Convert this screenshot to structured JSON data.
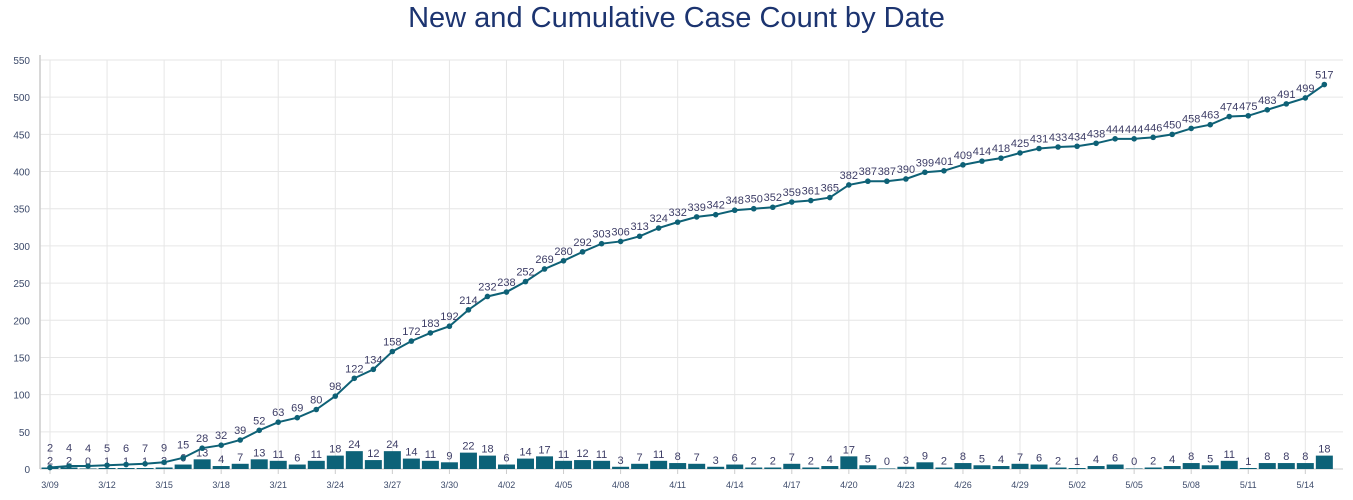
{
  "chart_data": {
    "type": "bar+line",
    "title": "New and Cumulative Case Count by Date",
    "xlabel": "",
    "ylabel": "",
    "ylim": [
      0,
      550
    ],
    "yticks": [
      0,
      50,
      100,
      150,
      200,
      250,
      300,
      350,
      400,
      450,
      500,
      550
    ],
    "grid": true,
    "categories": [
      "3/09",
      "3/10",
      "3/11",
      "3/12",
      "3/13",
      "3/14",
      "3/15",
      "3/16",
      "3/17",
      "3/18",
      "3/19",
      "3/20",
      "3/21",
      "3/22",
      "3/23",
      "3/24",
      "3/25",
      "3/26",
      "3/27",
      "3/28",
      "3/29",
      "3/30",
      "3/31",
      "4/01",
      "4/02",
      "4/03",
      "4/04",
      "4/05",
      "4/06",
      "4/07",
      "4/08",
      "4/09",
      "4/10",
      "4/11",
      "4/12",
      "4/13",
      "4/14",
      "4/15",
      "4/16",
      "4/17",
      "4/18",
      "4/19",
      "4/20",
      "4/21",
      "4/22",
      "4/23",
      "4/24",
      "4/25",
      "4/26",
      "4/27",
      "4/28",
      "4/29",
      "4/30",
      "5/01",
      "5/02",
      "5/03",
      "5/04",
      "5/05",
      "5/06",
      "5/07",
      "5/08",
      "5/09",
      "5/10",
      "5/11",
      "5/12",
      "5/13",
      "5/14",
      "5/15"
    ],
    "xtick_labels": [
      "3/09",
      "3/12",
      "3/15",
      "3/18",
      "3/21",
      "3/24",
      "3/27",
      "3/30",
      "4/02",
      "4/05",
      "4/08",
      "4/11",
      "4/14",
      "4/17",
      "4/20",
      "4/23",
      "4/26",
      "4/29",
      "5/02",
      "5/05",
      "5/08",
      "5/11",
      "5/14"
    ],
    "series": [
      {
        "type": "bar",
        "color": "#0d6278",
        "values": [
          2,
          2,
          0,
          1,
          1,
          1,
          2,
          6,
          13,
          4,
          7,
          13,
          11,
          6,
          11,
          18,
          24,
          12,
          24,
          14,
          11,
          9,
          22,
          18,
          6,
          14,
          17,
          11,
          12,
          11,
          3,
          7,
          11,
          8,
          7,
          3,
          6,
          2,
          2,
          7,
          2,
          4,
          17,
          5,
          0,
          3,
          9,
          2,
          8,
          5,
          4,
          7,
          6,
          2,
          1,
          4,
          6,
          0,
          2,
          4,
          8,
          5,
          11,
          1,
          8,
          8,
          8,
          18
        ]
      },
      {
        "type": "line",
        "color": "#0e6176",
        "values": [
          2,
          4,
          4,
          5,
          6,
          7,
          9,
          15,
          28,
          32,
          39,
          52,
          63,
          69,
          80,
          98,
          122,
          134,
          158,
          172,
          183,
          192,
          214,
          232,
          238,
          252,
          269,
          280,
          292,
          303,
          306,
          313,
          324,
          332,
          339,
          342,
          348,
          350,
          352,
          359,
          361,
          365,
          382,
          387,
          387,
          390,
          399,
          401,
          409,
          414,
          418,
          425,
          431,
          433,
          434,
          438,
          444,
          444,
          446,
          450,
          458,
          463,
          474,
          475,
          483,
          491,
          499,
          517
        ]
      }
    ]
  }
}
